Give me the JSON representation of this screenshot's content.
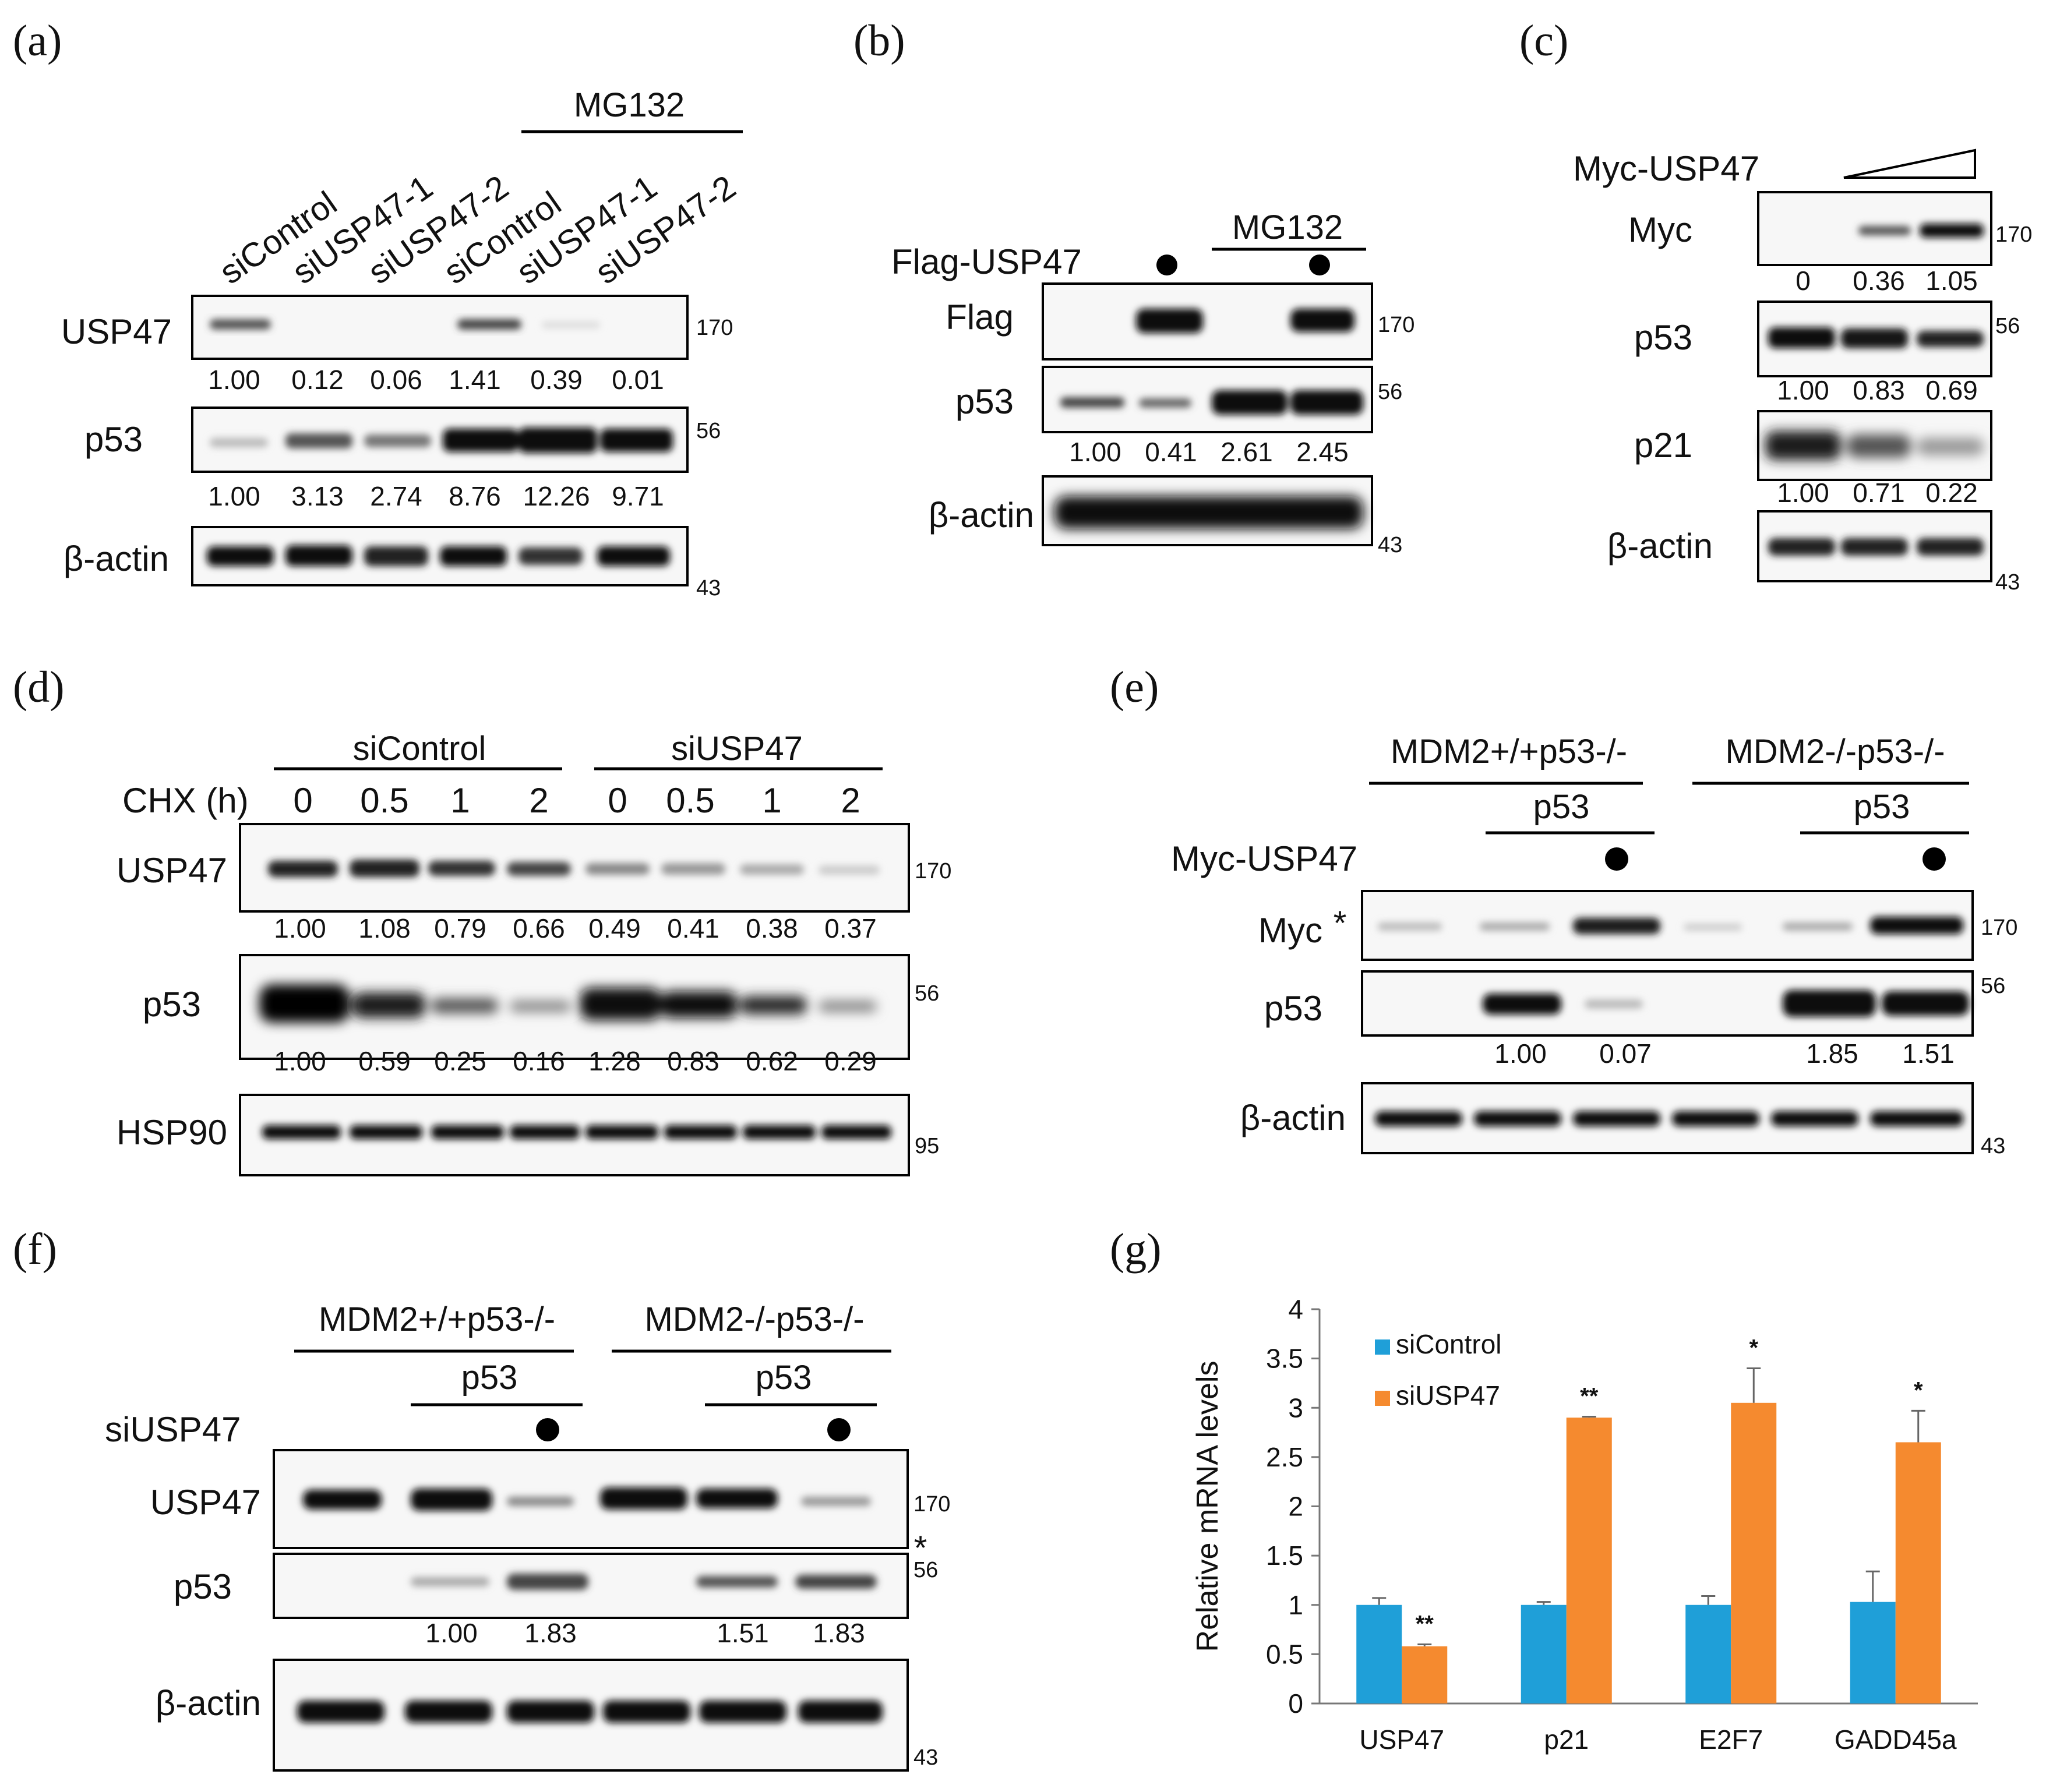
{
  "panels": {
    "a": {
      "label": "(a)",
      "group": "MG132",
      "lanes": [
        "siControl",
        "siUSP47-1",
        "siUSP47-2",
        "siControl",
        "siUSP47-1",
        "siUSP47-2"
      ],
      "rows": [
        {
          "name": "USP47",
          "mw": "170",
          "quant": [
            "1.00",
            "0.12",
            "0.06",
            "1.41",
            "0.39",
            "0.01"
          ]
        },
        {
          "name": "p53",
          "mw": "56",
          "quant": [
            "1.00",
            "3.13",
            "2.74",
            "8.76",
            "12.26",
            "9.71"
          ]
        },
        {
          "name": "β-actin",
          "mw": "43",
          "quant": []
        }
      ]
    },
    "b": {
      "label": "(b)",
      "group": "MG132",
      "treat": "Flag-USP47",
      "rows": [
        {
          "name": "Flag",
          "mw": "170"
        },
        {
          "name": "p53",
          "mw": "56",
          "quant": [
            "1.00",
            "0.41",
            "2.61",
            "2.45"
          ]
        },
        {
          "name": "β-actin",
          "mw": "43"
        }
      ]
    },
    "c": {
      "label": "(c)",
      "treat": "Myc-USP47",
      "rows": [
        {
          "name": "Myc",
          "mw": "170",
          "quant": [
            "0",
            "0.36",
            "1.05"
          ]
        },
        {
          "name": "p53",
          "mw": "56",
          "quant": [
            "1.00",
            "0.83",
            "0.69"
          ]
        },
        {
          "name": "p21",
          "quant": [
            "1.00",
            "0.71",
            "0.22"
          ]
        },
        {
          "name": "β-actin",
          "mw": "43"
        }
      ]
    },
    "d": {
      "label": "(d)",
      "group1": "siControl",
      "group2": "siUSP47",
      "chx": "CHX (h)",
      "times": [
        "0",
        "0.5",
        "1",
        "2",
        "0",
        "0.5",
        "1",
        "2"
      ],
      "rows": [
        {
          "name": "USP47",
          "mw": "170",
          "quant": [
            "1.00",
            "1.08",
            "0.79",
            "0.66",
            "0.49",
            "0.41",
            "0.38",
            "0.37"
          ]
        },
        {
          "name": "p53",
          "mw": "56",
          "quant": [
            "1.00",
            "0.59",
            "0.25",
            "0.16",
            "1.28",
            "0.83",
            "0.62",
            "0.29"
          ]
        },
        {
          "name": "HSP90",
          "mw": "95"
        }
      ]
    },
    "e": {
      "label": "(e)",
      "group1": "MDM2+/+p53-/-",
      "group2": "MDM2-/-p53-/-",
      "sub": "p53",
      "treat": "Myc-USP47",
      "star": "*",
      "rows": [
        {
          "name": "Myc",
          "mw": "170"
        },
        {
          "name": "p53",
          "mw": "56",
          "quant": [
            "1.00",
            "0.07",
            "1.85",
            "1.51"
          ]
        },
        {
          "name": "β-actin",
          "mw": "43"
        }
      ]
    },
    "f": {
      "label": "(f)",
      "group1": "MDM2+/+p53-/-",
      "group2": "MDM2-/-p53-/-",
      "sub": "p53",
      "treat": "siUSP47",
      "star": "*",
      "rows": [
        {
          "name": "USP47",
          "mw": "170"
        },
        {
          "name": "p53",
          "mw": "56",
          "quant": [
            "1.00",
            "1.83",
            "1.51",
            "1.83"
          ]
        },
        {
          "name": "β-actin",
          "mw": "43"
        }
      ]
    },
    "g": {
      "label": "(g)"
    }
  },
  "chart_data": {
    "type": "bar",
    "categories": [
      "USP47",
      "p21",
      "E2F7",
      "GADD45a"
    ],
    "series": [
      {
        "name": "siControl",
        "values": [
          1.0,
          1.0,
          1.0,
          1.03
        ],
        "errors": [
          0.07,
          0.03,
          0.09,
          0.31
        ],
        "color": "#1f9fd8"
      },
      {
        "name": "siUSP47",
        "values": [
          0.58,
          2.9,
          3.05,
          2.65
        ],
        "errors": [
          0.02,
          0.01,
          0.35,
          0.32
        ],
        "color": "#f58a2f"
      }
    ],
    "significance": [
      "**",
      "**",
      "*",
      "*"
    ],
    "ylabel": "Relative mRNA levels",
    "ylim": [
      0,
      4
    ],
    "yticks": [
      "0",
      "0.5",
      "1",
      "1.5",
      "2",
      "2.5",
      "3",
      "3.5",
      "4"
    ],
    "legend_position": "top-left"
  }
}
